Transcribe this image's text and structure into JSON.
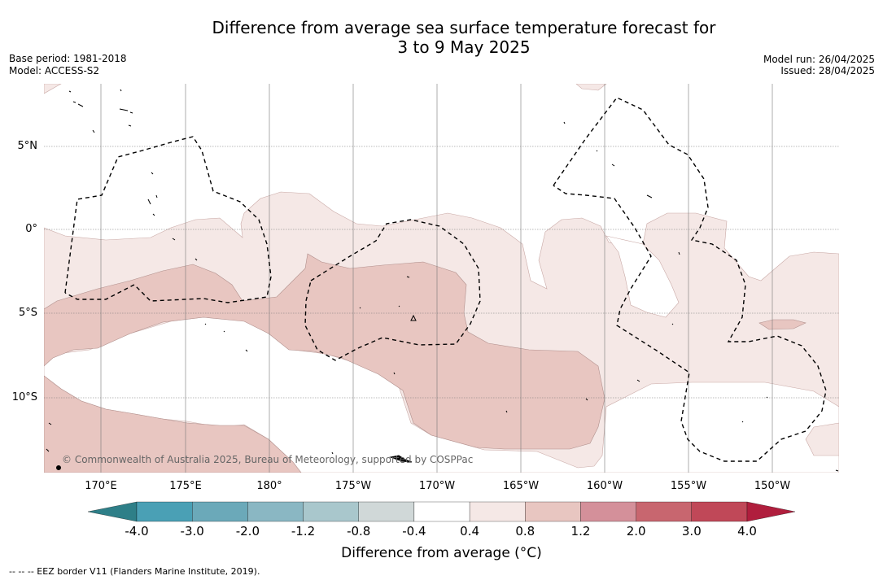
{
  "title_line1": "Difference from average sea surface temperature forecast for",
  "title_line2": "3 to 9 May 2025",
  "meta": {
    "base_period": "Base period: 1981-2018",
    "model": "Model: ACCESS-S2",
    "model_run": "Model run: 26/04/2025",
    "issued": "Issued: 28/04/2025"
  },
  "lat_labels": [
    "5°N",
    "0°",
    "5°S",
    "10°S"
  ],
  "lon_labels": [
    "170°E",
    "175°E",
    "180°",
    "175°W",
    "170°W",
    "165°W",
    "160°W",
    "155°W",
    "150°W"
  ],
  "colorbar": {
    "title": "Difference from average (°C)",
    "ticks": [
      "-4.0",
      "-3.0",
      "-2.0",
      "-1.2",
      "-0.8",
      "-0.4",
      "0.4",
      "0.8",
      "1.2",
      "2.0",
      "3.0",
      "4.0"
    ],
    "colors": [
      "#2e7f88",
      "#4aa0b5",
      "#6ba9b9",
      "#8ab7c3",
      "#a9c7cc",
      "#d0d8d8",
      "#ffffff",
      "#f5e8e6",
      "#e8c6c1",
      "#d4909a",
      "#c8666f",
      "#c04858",
      "#b01e3d"
    ]
  },
  "copyright": "© Commonwealth of Australia 2025, Bureau of Meteorology, supported by COSPPac",
  "footnote": "--  --  -- EEZ border V11 (Flanders Marine Institute, 2019)."
}
